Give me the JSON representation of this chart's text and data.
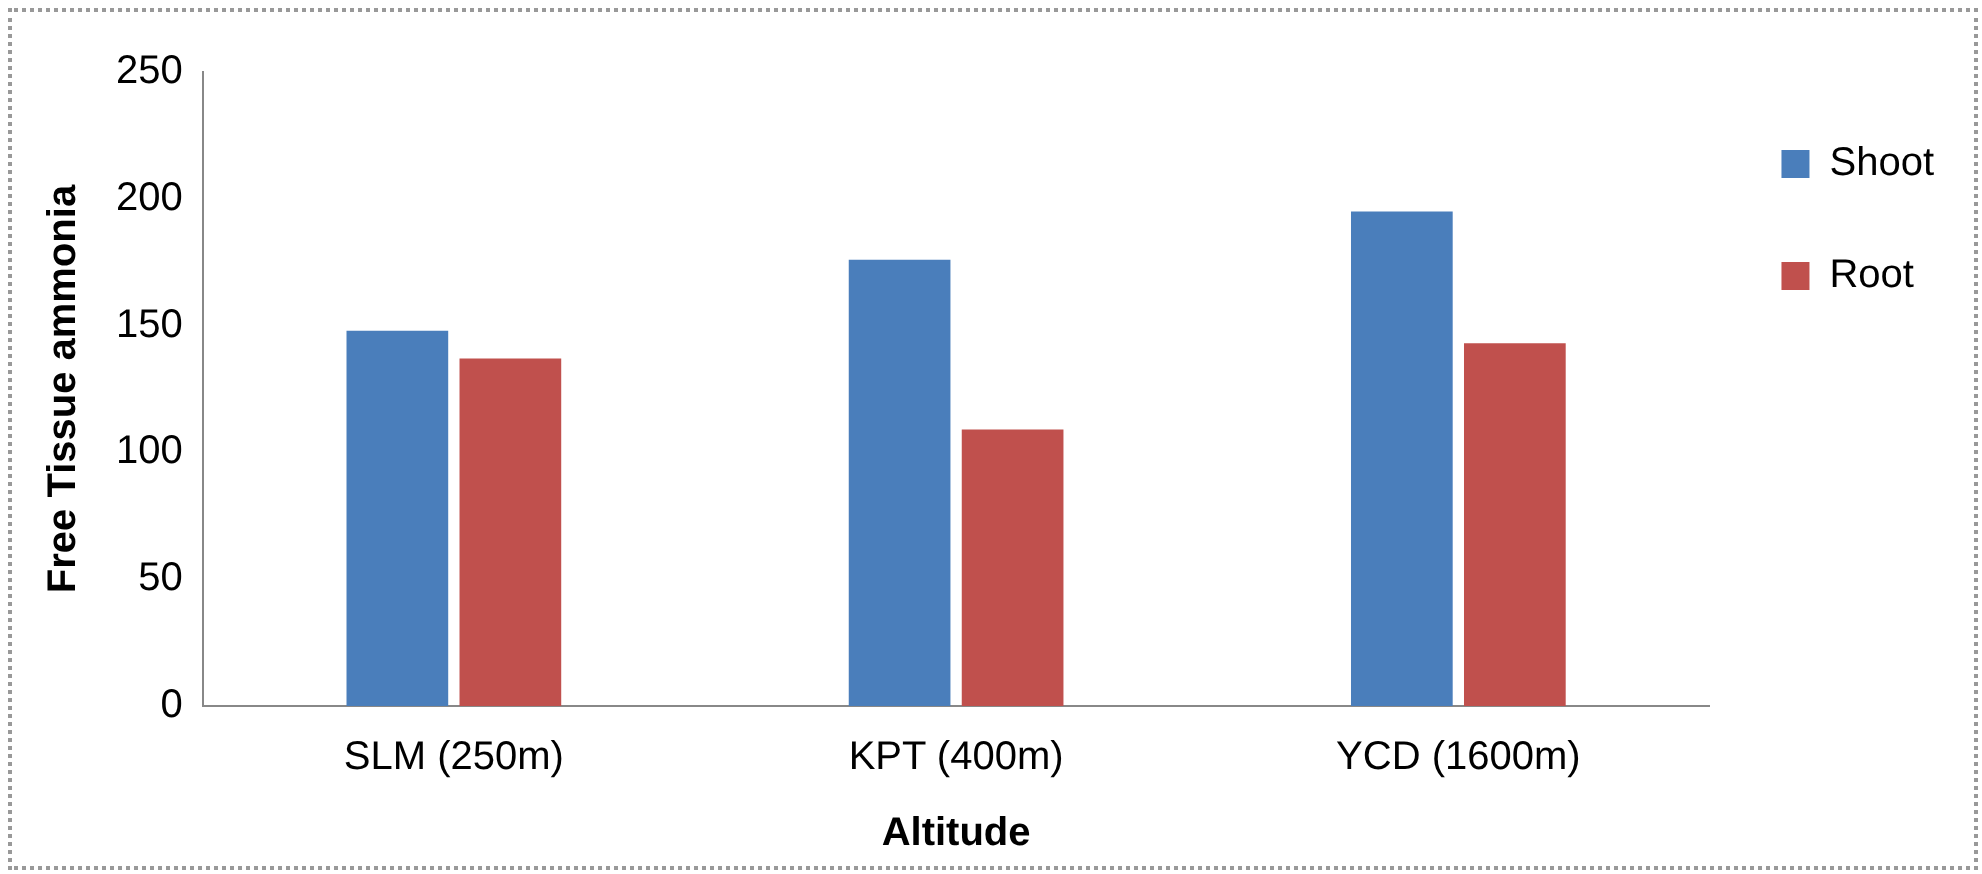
{
  "chart_data": {
    "type": "bar",
    "xlabel": "Altitude",
    "ylabel": "Free Tissue ammonia",
    "categories": [
      "SLM (250m)",
      "KPT (400m)",
      "YCD (1600m)"
    ],
    "series": [
      {
        "name": "Shoot",
        "color": "#4a7ebb",
        "values": [
          148,
          176,
          195
        ]
      },
      {
        "name": "Root",
        "color": "#c0504d",
        "values": [
          137,
          109,
          143
        ]
      }
    ],
    "ylim": [
      0,
      250
    ],
    "yticks": [
      0,
      50,
      100,
      150,
      200,
      250
    ],
    "legend": "top right"
  }
}
